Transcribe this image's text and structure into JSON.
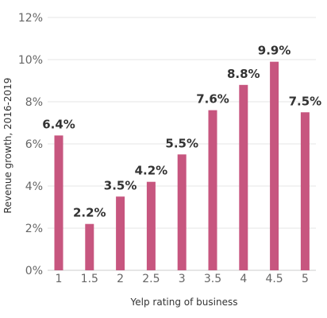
{
  "chart_data": {
    "type": "bar",
    "xlabel": "Yelp rating of business",
    "ylabel": "Revenue growth, 2016-2019",
    "categories": [
      "1",
      "1.5",
      "2",
      "2.5",
      "3",
      "3.5",
      "4",
      "4.5",
      "5"
    ],
    "values": [
      6.4,
      2.2,
      3.5,
      4.2,
      5.5,
      7.6,
      8.8,
      9.9,
      7.5
    ],
    "value_labels": [
      "6.4%",
      "2.2%",
      "3.5%",
      "4.2%",
      "5.5%",
      "7.6%",
      "8.8%",
      "9.9%",
      "7.5%"
    ],
    "ylim": [
      0,
      12
    ],
    "yticks": [
      0,
      2,
      4,
      6,
      8,
      10,
      12
    ],
    "ytick_labels": [
      "0%",
      "2%",
      "4%",
      "6%",
      "8%",
      "10%",
      "12%"
    ],
    "grid": true,
    "bar_color": "#C7567F"
  }
}
